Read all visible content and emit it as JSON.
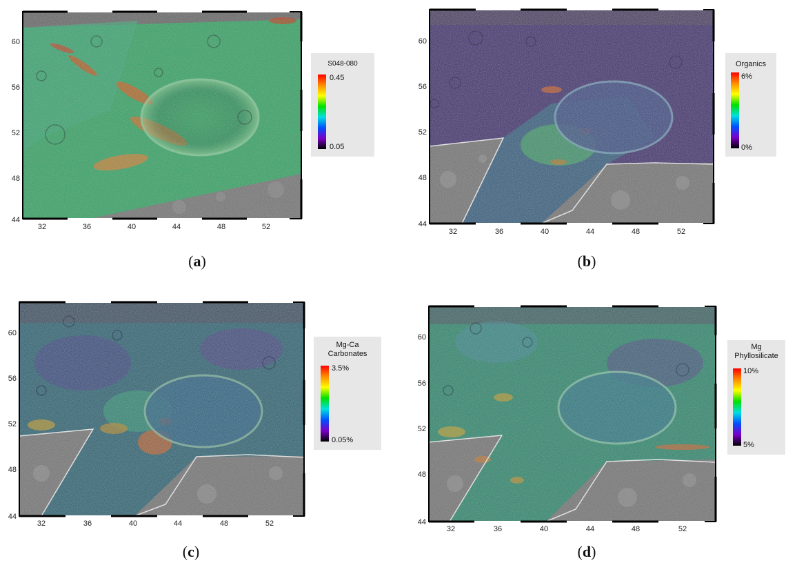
{
  "panels": [
    {
      "id": "a",
      "caption": "a",
      "legend": {
        "title_lines": [
          "S048-080"
        ],
        "max_label": "0.45",
        "min_label": "0.05"
      },
      "x_ticks": [
        "32",
        "36",
        "40",
        "44",
        "48",
        "52"
      ],
      "y_ticks": [
        "60",
        "56",
        "52",
        "48",
        "44"
      ]
    },
    {
      "id": "b",
      "caption": "b",
      "legend": {
        "title_lines": [
          "Organics"
        ],
        "max_label": "6%",
        "min_label": "0%"
      },
      "x_ticks": [
        "32",
        "36",
        "40",
        "44",
        "48",
        "52"
      ],
      "y_ticks": [
        "60",
        "56",
        "52",
        "48",
        "44"
      ]
    },
    {
      "id": "c",
      "caption": "c",
      "legend": {
        "title_lines": [
          "Mg-Ca",
          "Carbonates"
        ],
        "max_label": "3.5%",
        "min_label": "0.05%"
      },
      "x_ticks": [
        "32",
        "36",
        "40",
        "44",
        "48",
        "52"
      ],
      "y_ticks": [
        "60",
        "56",
        "52",
        "48",
        "44"
      ]
    },
    {
      "id": "d",
      "caption": "d",
      "legend": {
        "title_lines": [
          "Mg",
          "Phyllosilicate"
        ],
        "max_label": "10%",
        "min_label": "5%"
      },
      "x_ticks": [
        "32",
        "36",
        "40",
        "44",
        "48",
        "52"
      ],
      "y_ticks": [
        "60",
        "56",
        "52",
        "48",
        "44"
      ]
    }
  ],
  "colors": {
    "colorbar": [
      "#ff0000",
      "#ff8c00",
      "#ffff00",
      "#00e000",
      "#00e0e0",
      "#0050ff",
      "#7a00c8",
      "#000000"
    ]
  }
}
